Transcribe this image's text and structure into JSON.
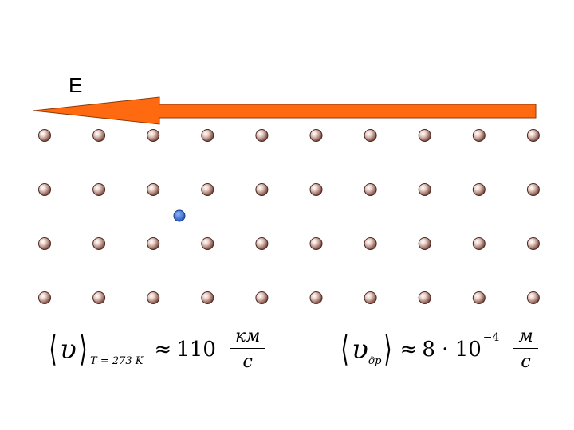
{
  "field": {
    "label": "E",
    "arrow_color": "#ff6a10",
    "direction": "left"
  },
  "lattice": {
    "rows": 4,
    "cols": 10,
    "ion_color": "#8a4a3e",
    "ion_highlight": "#f5e2dc",
    "icon": "ion-sphere"
  },
  "electron": {
    "color": "#2a62c9",
    "icon": "electron-dot"
  },
  "formulas": {
    "thermal": {
      "symbol": "υ",
      "subscript": "T = 273 K",
      "approx": "≈",
      "value": "110",
      "unit_numerator": "км",
      "unit_denominator": "с"
    },
    "drift": {
      "symbol": "υ",
      "subscript": "др",
      "approx": "≈",
      "value": "8 · 10",
      "exponent": "−4",
      "unit_numerator": "м",
      "unit_denominator": "с"
    }
  }
}
